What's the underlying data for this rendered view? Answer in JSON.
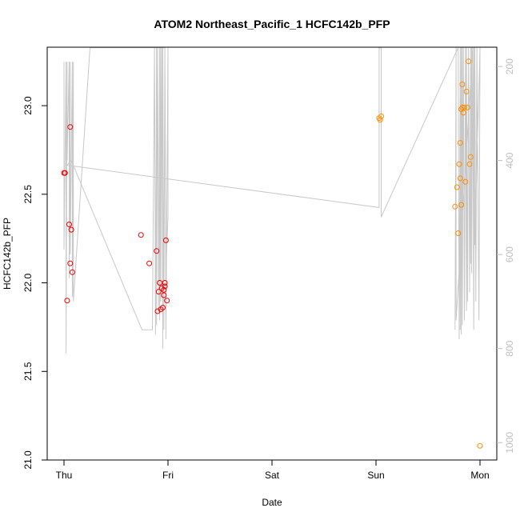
{
  "chart_data": {
    "type": "scatter",
    "title": "ATOM2 Northeast_Pacific_1 HCFC142b_PFP",
    "xlabel": "Date",
    "ylabel": "HCFC142b_PFP",
    "x_ticks": [
      "Thu",
      "Fri",
      "Sat",
      "Sun",
      "Mon"
    ],
    "xlim": [
      -0.03,
      4.16
    ],
    "ylim": [
      21.0,
      23.33
    ],
    "y_ticks": [
      21.0,
      21.5,
      22.0,
      22.5,
      23.0
    ],
    "y2_ticks": [
      200,
      400,
      600,
      800,
      1000
    ],
    "y2lim": [
      1037,
      159
    ],
    "grid": false,
    "colors": {
      "early": "#ee0000",
      "late": "#ff8c00",
      "depth": "#c8c8c8"
    },
    "series": [
      {
        "color": "#ee0000",
        "x": [
          0.0,
          0.01,
          0.03,
          0.05,
          0.06,
          0.06,
          0.07,
          0.08,
          0.74,
          0.82,
          0.89,
          0.9,
          0.91,
          0.92,
          0.93,
          0.94,
          0.95,
          0.96,
          0.96,
          0.97,
          0.97,
          0.98,
          0.99
        ],
        "y": [
          22.62,
          22.62,
          21.9,
          22.33,
          22.88,
          22.11,
          22.3,
          22.06,
          22.27,
          22.11,
          22.18,
          21.84,
          21.95,
          22.0,
          21.85,
          21.97,
          21.86,
          21.96,
          21.93,
          21.98,
          22.0,
          22.24,
          21.9
        ]
      },
      {
        "color": "#ff8c00",
        "x": [
          3.03,
          3.04,
          3.05,
          3.76,
          3.78,
          3.79,
          3.8,
          3.81,
          3.81,
          3.82,
          3.82,
          3.83,
          3.83,
          3.84,
          3.85,
          3.86,
          3.87,
          3.88,
          3.89,
          3.9,
          3.91,
          4.0
        ],
        "y": [
          22.93,
          22.92,
          22.94,
          22.43,
          22.54,
          22.28,
          22.67,
          22.79,
          22.59,
          22.44,
          22.98,
          23.12,
          22.99,
          22.96,
          22.99,
          22.57,
          23.08,
          22.99,
          23.25,
          22.67,
          22.71,
          21.08
        ]
      }
    ],
    "depth_line": {
      "x": [
        0.0,
        0.0,
        0.02,
        0.02,
        0.03,
        0.03,
        0.05,
        0.05,
        0.06,
        0.06,
        0.08,
        0.08,
        0.09,
        0.09,
        0.25,
        0.97,
        0.98,
        1.0,
        1.0,
        0.98,
        0.97,
        0.96,
        0.95,
        0.95,
        0.94,
        0.93,
        0.93,
        0.92,
        0.92,
        0.91,
        0.9,
        0.89,
        0.89,
        0.88,
        0.87,
        0.85,
        0.75,
        0.07,
        0.03,
        3.03,
        3.03,
        3.04,
        3.05,
        3.05,
        3.79,
        3.8,
        3.81,
        3.81,
        3.82,
        3.82,
        3.83,
        3.83,
        3.84,
        3.85,
        3.86,
        3.87,
        3.87,
        3.88,
        3.89,
        3.9,
        3.91,
        3.91,
        3.92,
        3.92,
        3.93,
        3.94,
        3.94,
        3.95,
        4.0,
        3.99,
        3.97,
        3.96,
        3.95,
        3.94,
        3.93,
        3.77,
        3.77,
        3.76
      ],
      "y": [
        190,
        590,
        190,
        810,
        190,
        400,
        190,
        650,
        190,
        600,
        190,
        690,
        190,
        700,
        160,
        160,
        630,
        520,
        160,
        780,
        160,
        760,
        160,
        800,
        160,
        700,
        160,
        740,
        160,
        720,
        160,
        750,
        160,
        770,
        160,
        760,
        760,
        400,
        410,
        500,
        160,
        160,
        160,
        520,
        160,
        780,
        160,
        760,
        160,
        770,
        160,
        750,
        160,
        740,
        160,
        720,
        160,
        700,
        160,
        680,
        160,
        620,
        160,
        640,
        160,
        600,
        160,
        580,
        160,
        740,
        160,
        700,
        160,
        760,
        160,
        740,
        160,
        760
      ]
    }
  }
}
